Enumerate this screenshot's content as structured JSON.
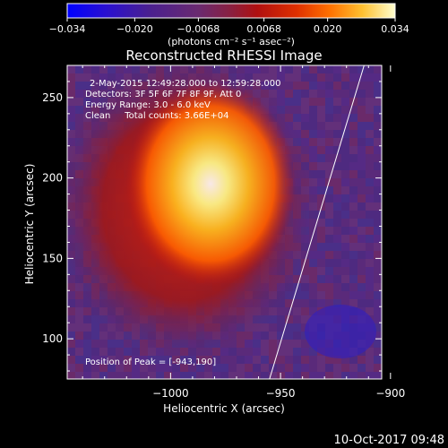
{
  "colorbar": {
    "tick_labels": [
      "−0.034",
      "−0.020",
      "−0.0068",
      "0.0068",
      "0.020",
      "0.034"
    ],
    "tick_values": [
      -0.034,
      -0.02,
      -0.0068,
      0.0068,
      0.02,
      0.034
    ],
    "range": [
      -0.034,
      0.034
    ],
    "units_label": "(photons cm⁻² s⁻¹ asec⁻²)",
    "colormap": [
      "#0000ff",
      "#3a1fb0",
      "#6a2a80",
      "#8a2a60",
      "#b02020",
      "#e04000",
      "#ff8000",
      "#ffd040",
      "#ffffb0",
      "#ffffff"
    ]
  },
  "chart_data": {
    "type": "heatmap",
    "title": "Reconstructed RHESSI Image",
    "xlabel": "Heliocentric X (arcsec)",
    "ylabel": "Heliocentric Y (arcsec)",
    "xlim": [
      -1047,
      -904
    ],
    "ylim": [
      75,
      270
    ],
    "x_ticks": [
      -1000,
      -950,
      -900
    ],
    "x_tick_labels": [
      "−1000",
      "−950",
      "−900"
    ],
    "y_ticks": [
      100,
      150,
      200,
      250
    ],
    "y_tick_labels": [
      "100",
      "150",
      "200",
      "250"
    ],
    "peak": [
      -943,
      190
    ],
    "limb_line_x_top": -912,
    "limb_line_x_bottom": -955,
    "annotations": {
      "time_range": "2-May-2015 12:49:28.000 to 12:59:28.000",
      "detectors": "Detectors: 3F 5F 6F 7F 8F 9F, Att 0",
      "energy": "Energy Range: 3.0 - 6.0 keV",
      "algorithm": "Clean     Total counts: 3.66E+04",
      "peak_text": "Position of Peak = [-943,190]"
    },
    "grid": false,
    "legend": "none"
  },
  "footer": {
    "date": "10-Oct-2017 09:48"
  },
  "colors": {
    "background": "#000000",
    "foreground": "#ffffff"
  }
}
